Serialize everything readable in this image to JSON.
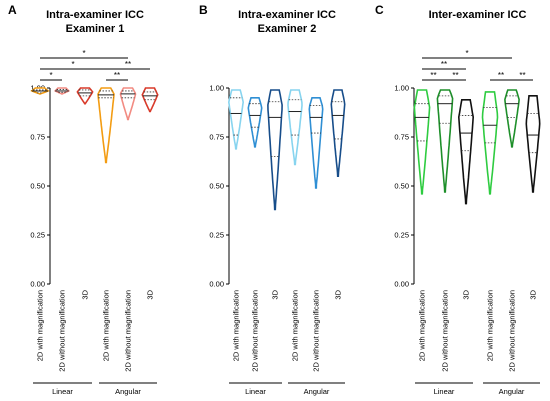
{
  "chart_data": [
    {
      "type": "violin",
      "letter": "A",
      "title_lines": [
        "Intra-examiner ICC",
        "Examiner 1"
      ],
      "ylim": [
        0,
        1.0
      ],
      "yticks": [
        "0.00",
        "0.25",
        "0.50",
        "0.75",
        "1.00"
      ],
      "categories": [
        "2D with magnification",
        "2D without magnification",
        "3D",
        "2D with magnification",
        "2D without magnification",
        "3D"
      ],
      "groups": [
        {
          "label": "Linear",
          "from": 0,
          "to": 2
        },
        {
          "label": "Angular",
          "from": 3,
          "to": 5
        }
      ],
      "series": [
        {
          "color": "#f39c12",
          "min": 0.97,
          "max": 1.0,
          "median": 0.985,
          "q1": 0.975,
          "q3": 0.99,
          "width": 0.95,
          "peak": 0.985
        },
        {
          "color": "#f28b82",
          "min": 0.97,
          "max": 1.0,
          "median": 0.985,
          "q1": 0.978,
          "q3": 0.992,
          "width": 0.8,
          "peak": 0.985
        },
        {
          "color": "#d93a2a",
          "min": 0.92,
          "max": 1.0,
          "median": 0.975,
          "q1": 0.96,
          "q3": 0.99,
          "width": 0.9,
          "peak": 0.98
        },
        {
          "color": "#f39c12",
          "min": 0.62,
          "max": 1.0,
          "median": 0.965,
          "q1": 0.95,
          "q3": 0.985,
          "width": 0.95,
          "peak": 0.97
        },
        {
          "color": "#f28b82",
          "min": 0.84,
          "max": 1.0,
          "median": 0.97,
          "q1": 0.95,
          "q3": 0.985,
          "width": 0.9,
          "peak": 0.97
        },
        {
          "color": "#d93a2a",
          "min": 0.88,
          "max": 1.0,
          "median": 0.96,
          "q1": 0.94,
          "q3": 0.98,
          "width": 0.9,
          "peak": 0.965
        }
      ],
      "significance": [
        {
          "from": 0,
          "to": 1,
          "label": "*"
        },
        {
          "from": 0,
          "to": 3,
          "label": "*"
        },
        {
          "from": 0,
          "to": 4,
          "label": "*"
        },
        {
          "from": 3,
          "to": 4,
          "label": "**"
        },
        {
          "from": 3,
          "to": 5,
          "label": "**"
        }
      ]
    },
    {
      "type": "violin",
      "letter": "B",
      "title_lines": [
        "Intra-examiner ICC",
        "Examiner 2"
      ],
      "ylim": [
        0,
        1.0
      ],
      "yticks": [
        "0.00",
        "0.25",
        "0.50",
        "0.75",
        "1.00"
      ],
      "categories": [
        "2D with magnification",
        "2D without magnification",
        "3D",
        "2D with magnification",
        "2D without magnification",
        "3D"
      ],
      "groups": [
        {
          "label": "Linear",
          "from": 0,
          "to": 2
        },
        {
          "label": "Angular",
          "from": 3,
          "to": 5
        }
      ],
      "series": [
        {
          "color": "#87d4ef",
          "min": 0.69,
          "max": 0.99,
          "median": 0.87,
          "q1": 0.76,
          "q3": 0.95,
          "width": 0.85,
          "peak": 0.93
        },
        {
          "color": "#2f8fd4",
          "min": 0.7,
          "max": 0.95,
          "median": 0.86,
          "q1": 0.8,
          "q3": 0.92,
          "width": 0.8,
          "peak": 0.9
        },
        {
          "color": "#174d8a",
          "min": 0.38,
          "max": 0.99,
          "median": 0.85,
          "q1": 0.65,
          "q3": 0.93,
          "width": 0.85,
          "peak": 0.91
        },
        {
          "color": "#87d4ef",
          "min": 0.61,
          "max": 0.99,
          "median": 0.88,
          "q1": 0.76,
          "q3": 0.94,
          "width": 0.85,
          "peak": 0.92
        },
        {
          "color": "#2f8fd4",
          "min": 0.49,
          "max": 0.95,
          "median": 0.85,
          "q1": 0.77,
          "q3": 0.91,
          "width": 0.8,
          "peak": 0.9
        },
        {
          "color": "#174d8a",
          "min": 0.55,
          "max": 0.99,
          "median": 0.86,
          "q1": 0.74,
          "q3": 0.93,
          "width": 0.8,
          "peak": 0.92
        }
      ],
      "significance": []
    },
    {
      "type": "violin",
      "letter": "C",
      "title_lines": [
        "Inter-examiner ICC"
      ],
      "ylim": [
        0,
        1.0
      ],
      "yticks": [
        "0.00",
        "0.25",
        "0.50",
        "0.75",
        "1.00"
      ],
      "categories": [
        "2D with magnification",
        "2D without magnification",
        "3D",
        "2D with magnification",
        "2D without magnification",
        "3D"
      ],
      "groups": [
        {
          "label": "Linear",
          "from": 0,
          "to": 2
        },
        {
          "label": "Angular",
          "from": 3,
          "to": 5
        }
      ],
      "series": [
        {
          "color": "#2ecc40",
          "min": 0.46,
          "max": 0.99,
          "median": 0.85,
          "q1": 0.73,
          "q3": 0.92,
          "width": 0.9,
          "peak": 0.9
        },
        {
          "color": "#1e8f2a",
          "min": 0.47,
          "max": 0.99,
          "median": 0.92,
          "q1": 0.82,
          "q3": 0.96,
          "width": 0.9,
          "peak": 0.95
        },
        {
          "color": "#111111",
          "min": 0.41,
          "max": 0.94,
          "median": 0.77,
          "q1": 0.68,
          "q3": 0.86,
          "width": 0.85,
          "peak": 0.85
        },
        {
          "color": "#2ecc40",
          "min": 0.46,
          "max": 0.98,
          "median": 0.81,
          "q1": 0.72,
          "q3": 0.9,
          "width": 0.9,
          "peak": 0.86
        },
        {
          "color": "#1e8f2a",
          "min": 0.7,
          "max": 0.99,
          "median": 0.92,
          "q1": 0.85,
          "q3": 0.96,
          "width": 0.85,
          "peak": 0.94
        },
        {
          "color": "#111111",
          "min": 0.47,
          "max": 0.96,
          "median": 0.76,
          "q1": 0.67,
          "q3": 0.87,
          "width": 0.8,
          "peak": 0.82
        }
      ],
      "significance": [
        {
          "from": 0,
          "to": 1,
          "label": "**"
        },
        {
          "from": 0,
          "to": 2,
          "label": "**"
        },
        {
          "from": 0,
          "to": 4,
          "label": "*"
        },
        {
          "from": 1,
          "to": 2,
          "label": "**"
        },
        {
          "from": 3,
          "to": 4,
          "label": "**"
        },
        {
          "from": 4,
          "to": 5,
          "label": "**"
        }
      ]
    }
  ]
}
